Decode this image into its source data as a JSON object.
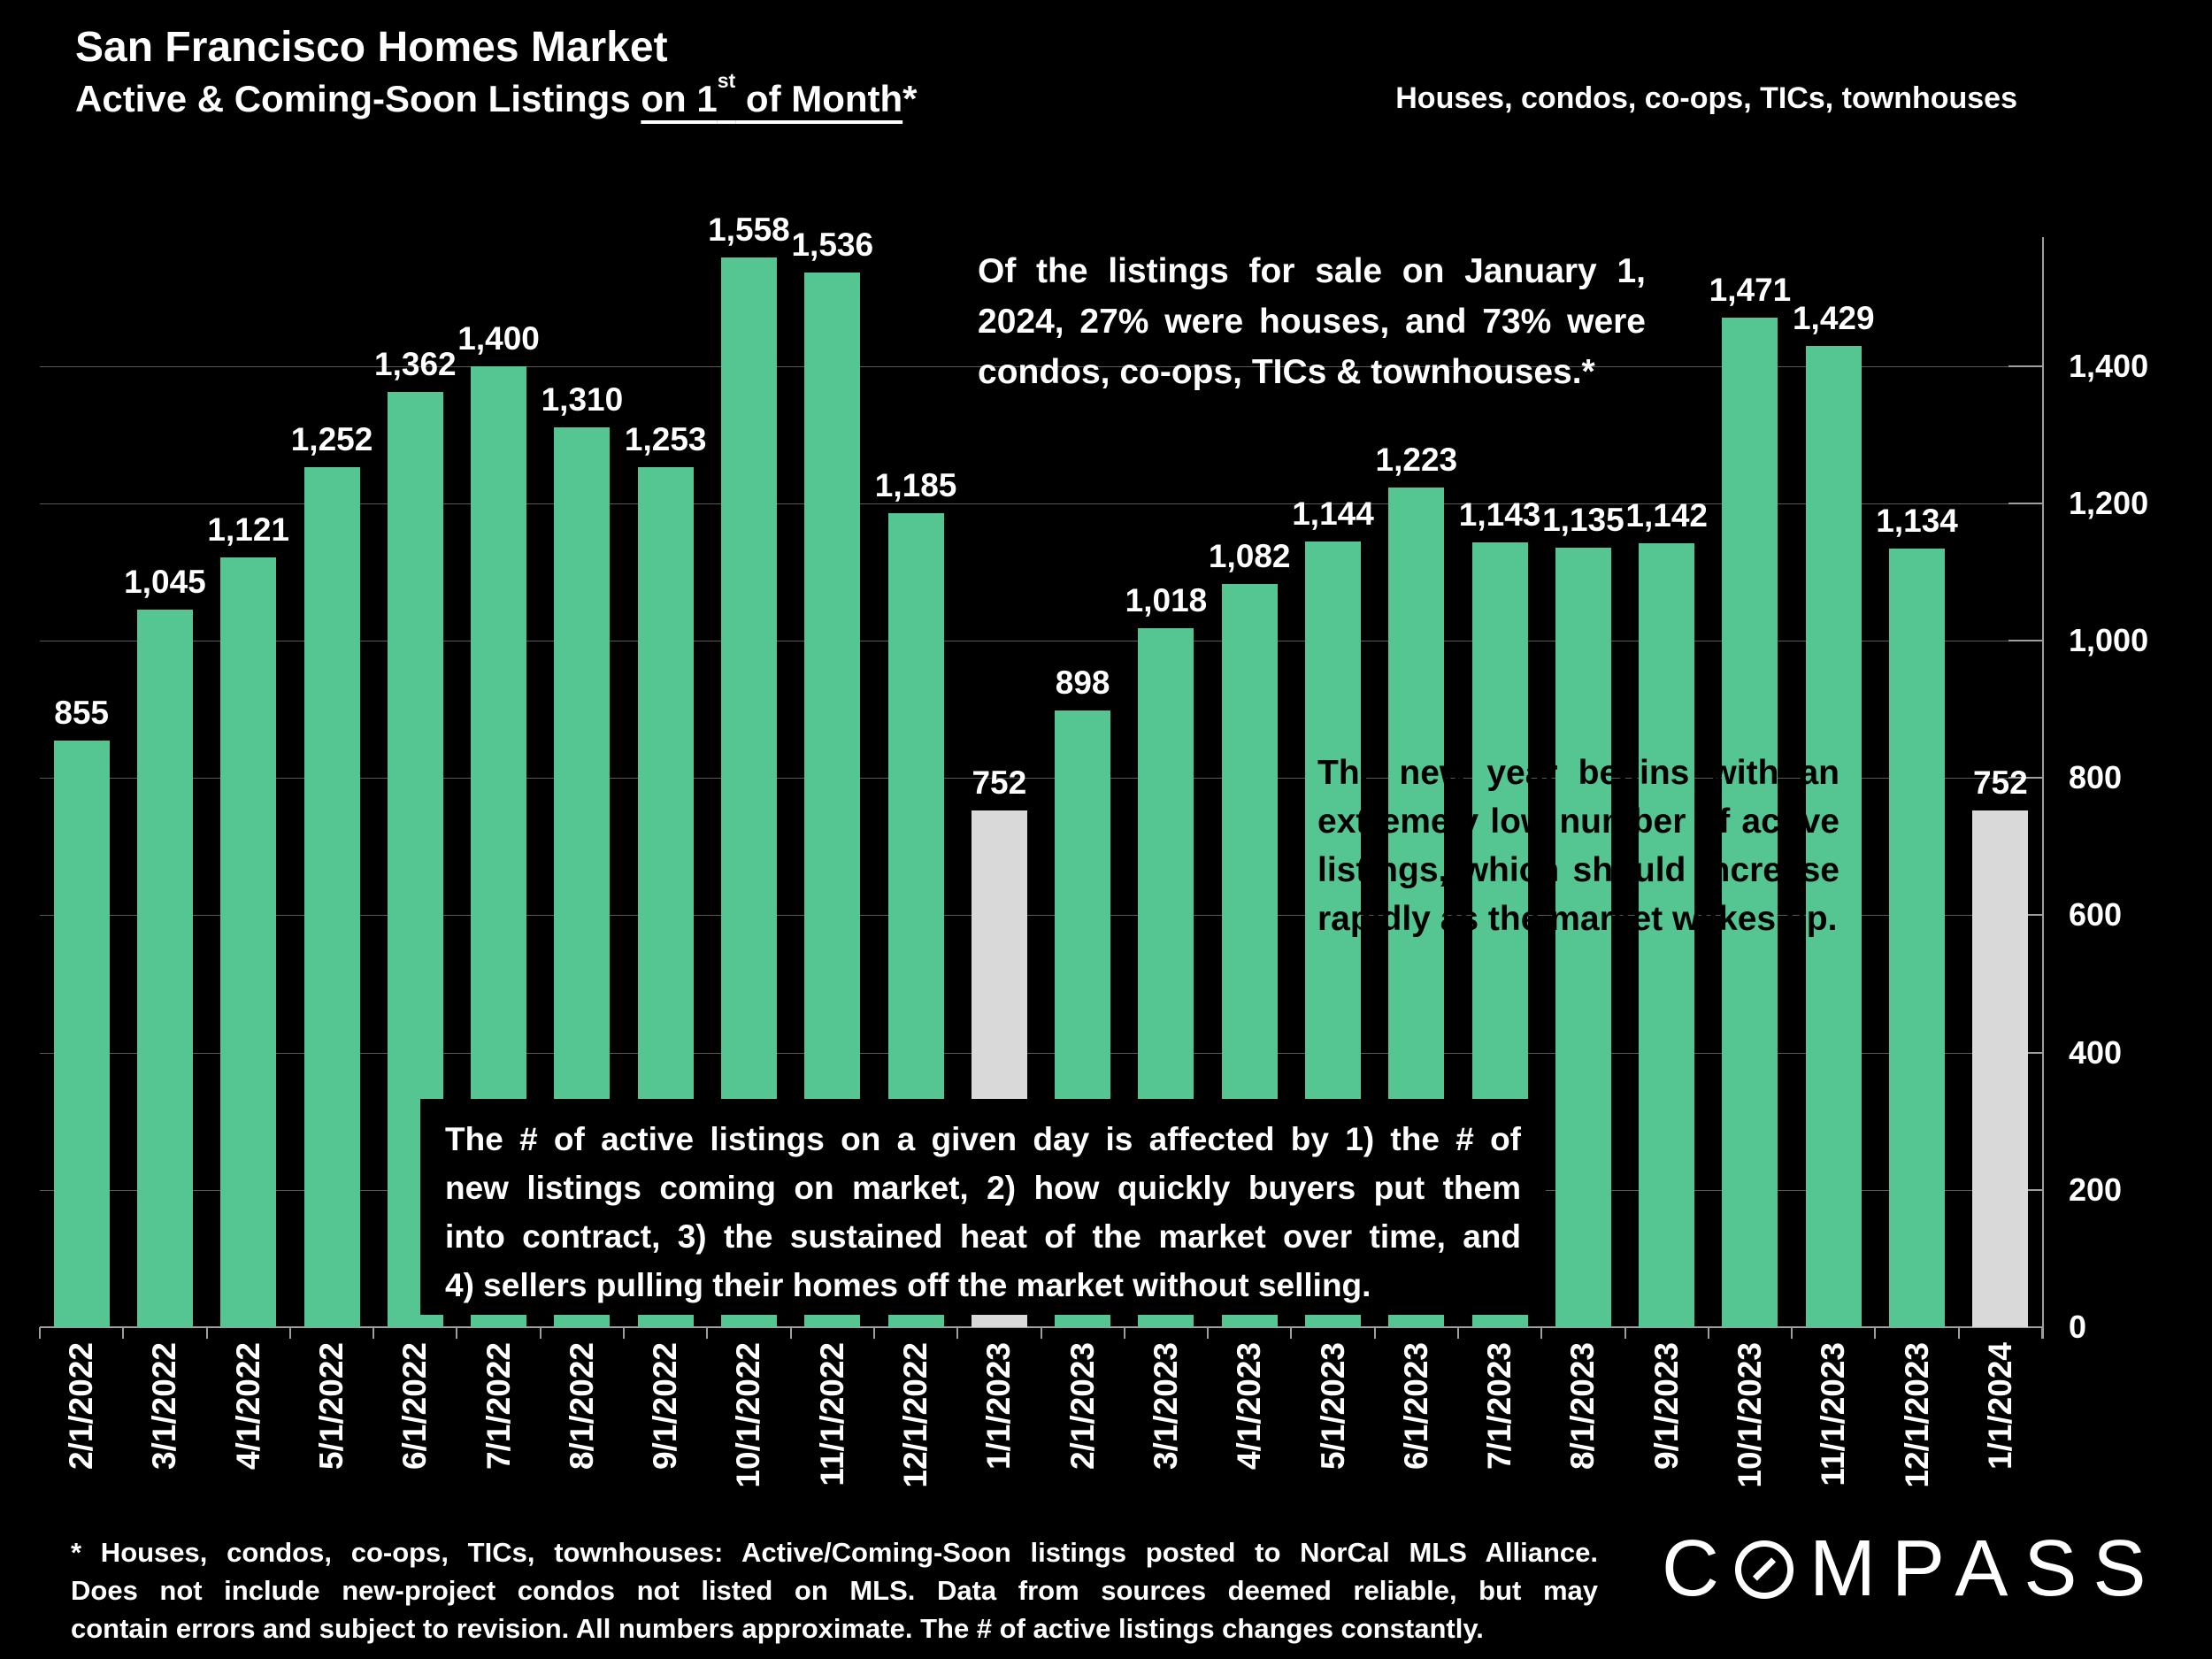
{
  "title": "San Francisco Homes Market",
  "subtitle": {
    "plain": "Active & Coming-Soon Listings ",
    "u1": "on 1",
    "sup": "st",
    "u2": " of Month",
    "star": "*"
  },
  "top_right_note": "Houses, condos, co-ops, TICs, townhouses",
  "annotation_houses": {
    "lines": [
      "Of the listings for sale on January 1,",
      "2024, 27% were houses, and 73% were",
      "condos, co-ops, TICs & townhouses.*"
    ]
  },
  "annotation_new_year": {
    "lines": [
      "The new year begins with an",
      "extremely low number of active",
      "listings, which should increase",
      "rapidly as the market wakes up."
    ]
  },
  "annotation_factors": {
    "lines": [
      "The # of active listings on a given day is affected by 1) the # of",
      "new listings coming on market, 2) how quickly buyers put them",
      "into contract, 3) the sustained heat of the market over time, and",
      "4) sellers pulling their homes off the market without selling."
    ]
  },
  "footnote": {
    "lines": [
      "* Houses, condos, co-ops, TICs, townhouses: Active/Coming-Soon listings posted to NorCal MLS Alliance.",
      "Does not include new-project condos not listed on MLS. Data from sources deemed reliable, but may",
      "contain errors and subject to revision. All numbers approximate. The # of active listings changes constantly."
    ]
  },
  "logo": {
    "pre": "C",
    "post": "MPASS",
    "name": "COMPASS"
  },
  "colors": {
    "background": "#000000",
    "bar_green": "#55C591",
    "bar_highlight": "#D9D9D9",
    "gridline": "#585858",
    "axis": "#9E9E9E",
    "text": "#FFFFFF",
    "box_text_dark": "#000000"
  },
  "chart_data": {
    "type": "bar",
    "title": "San Francisco Homes Market — Active & Coming-Soon Listings on 1st of Month",
    "xlabel": "",
    "ylabel": "",
    "categories": [
      "2/1/2022",
      "3/1/2022",
      "4/1/2022",
      "5/1/2022",
      "6/1/2022",
      "7/1/2022",
      "8/1/2022",
      "9/1/2022",
      "10/1/2022",
      "11/1/2022",
      "12/1/2022",
      "1/1/2023",
      "2/1/2023",
      "3/1/2023",
      "4/1/2023",
      "5/1/2023",
      "6/1/2023",
      "7/1/2023",
      "8/1/2023",
      "9/1/2023",
      "10/1/2023",
      "11/1/2023",
      "12/1/2023",
      "1/1/2024"
    ],
    "values": [
      855,
      1045,
      1121,
      1252,
      1362,
      1400,
      1310,
      1253,
      1558,
      1536,
      1185,
      752,
      898,
      1018,
      1082,
      1144,
      1223,
      1143,
      1135,
      1142,
      1471,
      1429,
      1134,
      752
    ],
    "highlight_categories": [
      "1/1/2023",
      "1/1/2024"
    ],
    "ylim": [
      0,
      1600
    ],
    "yticks": [
      0,
      200,
      400,
      600,
      800,
      1000,
      1200,
      1400
    ],
    "grid": true,
    "legend_position": "none",
    "value_labels": true,
    "bar_color_key": "bar_green",
    "highlight_color_key": "bar_highlight"
  }
}
